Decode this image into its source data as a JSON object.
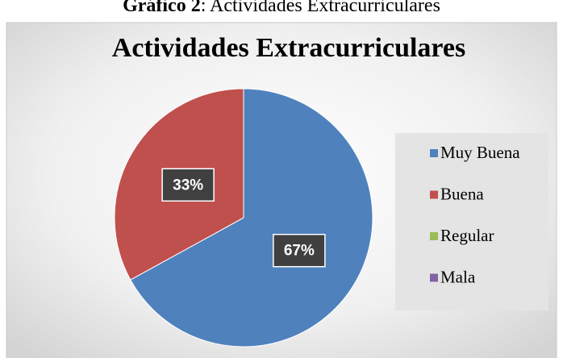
{
  "caption": {
    "label": "Gráfico 2",
    "text": ": Actividades Extracurriculares"
  },
  "chart_data": {
    "type": "pie",
    "title": "Actividades Extracurriculares",
    "categories": [
      "Muy Buena",
      "Buena",
      "Regular",
      "Mala"
    ],
    "values": [
      67,
      33,
      0,
      0
    ],
    "value_labels": [
      "67%",
      "33%",
      null,
      null
    ],
    "colors": [
      "#4f81bd",
      "#c0504d",
      "#9bbb59",
      "#8064a2"
    ],
    "legend": "right"
  }
}
